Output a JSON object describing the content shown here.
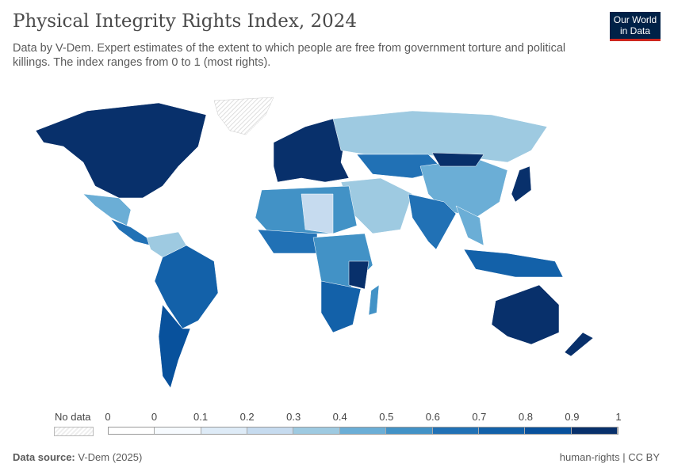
{
  "header": {
    "title": "Physical Integrity Rights Index, 2024",
    "subtitle": "Data by V-Dem. Expert estimates of the extent to which people are free from government torture and political killings. The index ranges from 0 to 1 (most rights).",
    "logo": "Our World in Data"
  },
  "legend": {
    "no_data_label": "No data",
    "ticks": [
      "0",
      "0",
      "0.1",
      "0.2",
      "0.3",
      "0.4",
      "0.5",
      "0.6",
      "0.7",
      "0.8",
      "0.9",
      "1"
    ],
    "colors": [
      "#f7fbff",
      "#deebf7",
      "#c6dbef",
      "#9ecae1",
      "#6baed6",
      "#4292c6",
      "#2171b5",
      "#1361a9",
      "#08519c",
      "#08306b"
    ],
    "no_data_color": "#eeeeee"
  },
  "footer": {
    "source_label": "Data source:",
    "source": "V-Dem (2025)",
    "license": "human-rights | CC BY"
  }
}
